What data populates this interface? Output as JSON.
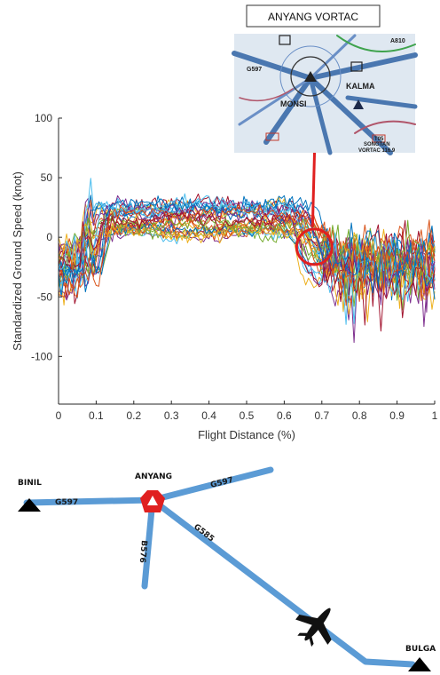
{
  "chart_data": {
    "type": "line",
    "title": "",
    "xlabel": "Flight Distance (%)",
    "ylabel": "Standardized Ground Speed (knot)",
    "xlim": [
      0,
      1
    ],
    "ylim": [
      -140,
      100
    ],
    "x_ticks": [
      0,
      0.1,
      0.2,
      0.3,
      0.4,
      0.5,
      0.6,
      0.7,
      0.8,
      0.9,
      1
    ],
    "x_tick_labels": [
      "0",
      "0.1",
      "0.2",
      "0.3",
      "0.4",
      "0.5",
      "0.6",
      "0.7",
      "0.8",
      "0.9",
      "1"
    ],
    "y_ticks": [
      100,
      50,
      0,
      -50,
      -100
    ],
    "y_tick_labels": [
      "100",
      "50",
      "0",
      "-50",
      "-100"
    ],
    "grid": false,
    "legend": "none",
    "series_count": 30,
    "series_colors": [
      "#0072bd",
      "#d95319",
      "#edb120",
      "#7e2f8e",
      "#77ac30",
      "#4dbeee",
      "#a2142f"
    ],
    "annotation": {
      "x": 0.68,
      "y": -8,
      "shape": "circle",
      "color": "#e02020",
      "label": "ANYANG VORTAC"
    }
  },
  "inset": {
    "title": "ANYANG VORTAC",
    "labels": [
      "MONSI",
      "KALMA",
      "G597",
      "SONGTAN",
      "VORTAC 116.9",
      "A810",
      "T05"
    ]
  },
  "route_map": {
    "waypoints": [
      {
        "name": "BINIL",
        "color": "#000000"
      },
      {
        "name": "ANYANG",
        "color": "#e02020"
      },
      {
        "name": "BULGA",
        "color": "#000000"
      }
    ],
    "routes": [
      "G597",
      "G597",
      "B576",
      "G585"
    ],
    "route_color": "#5b9bd5",
    "icons": [
      "triangle-icon",
      "vortac-icon",
      "airplane-icon"
    ]
  }
}
